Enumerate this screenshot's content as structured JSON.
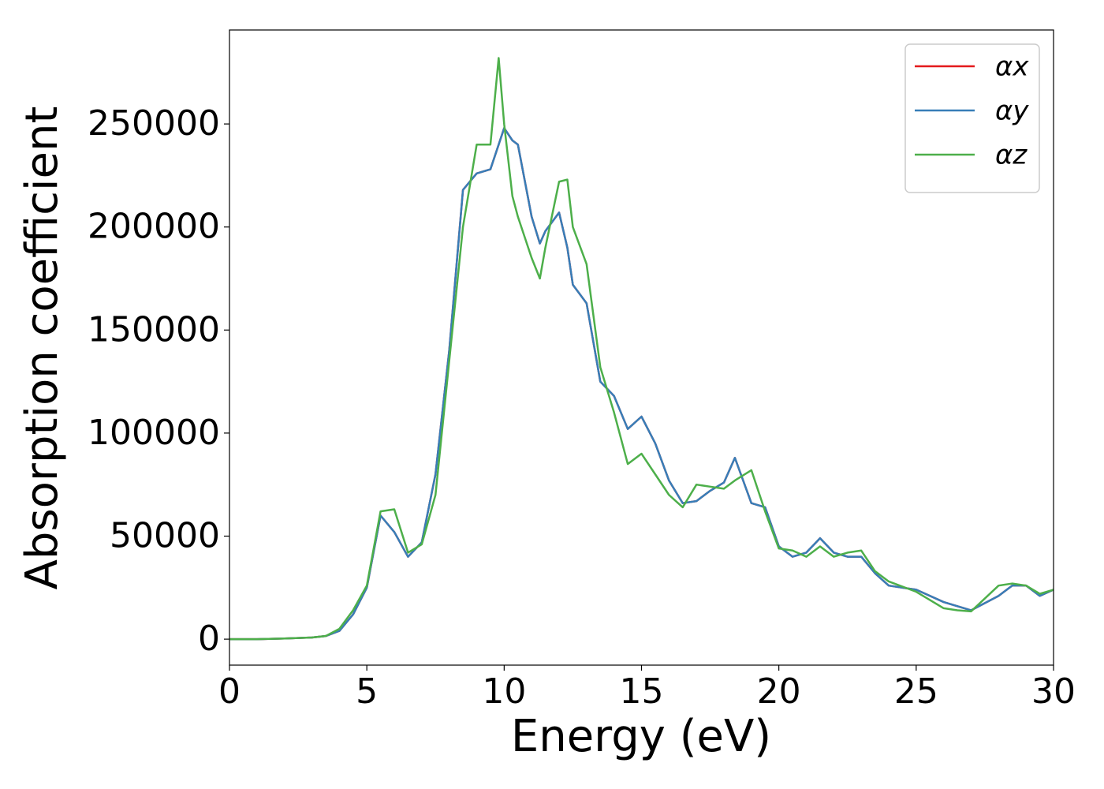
{
  "chart_data": {
    "type": "line",
    "x_label": "Energy (eV)",
    "y_label": "Absorption coefficient",
    "x": [
      0,
      1,
      2,
      3,
      3.5,
      4,
      4.5,
      5,
      5.5,
      6,
      6.5,
      7,
      7.5,
      8,
      8.5,
      9,
      9.5,
      9.8,
      10,
      10.3,
      10.5,
      11,
      11.3,
      11.5,
      12,
      12.3,
      12.5,
      13,
      13.5,
      14,
      14.5,
      15,
      15.5,
      16,
      16.5,
      17,
      17.5,
      18,
      18.4,
      19,
      19.5,
      20,
      20.5,
      21,
      21.5,
      22,
      22.5,
      23,
      23.5,
      24,
      25,
      26,
      26.5,
      27,
      28,
      28.5,
      29,
      29.5,
      30
    ],
    "series": [
      {
        "name": "αx",
        "color": "#e41a1c",
        "values": [
          0,
          0,
          300,
          800,
          1500,
          4000,
          12000,
          25000,
          60000,
          52000,
          40000,
          47000,
          80000,
          140000,
          218000,
          226000,
          228000,
          240000,
          248000,
          242000,
          240000,
          205000,
          192000,
          198000,
          207000,
          190000,
          172000,
          163000,
          125000,
          118000,
          102000,
          108000,
          95000,
          77000,
          66000,
          67000,
          72000,
          76000,
          88000,
          66000,
          64000,
          45000,
          40000,
          42000,
          49000,
          42000,
          40000,
          40000,
          32000,
          26000,
          24000,
          18000,
          16000,
          14000,
          21000,
          26000,
          26000,
          21000,
          24000
        ]
      },
      {
        "name": "αy",
        "color": "#377eb8",
        "values": [
          0,
          0,
          300,
          800,
          1500,
          4000,
          12000,
          25000,
          60000,
          52000,
          40000,
          47000,
          80000,
          140000,
          218000,
          226000,
          228000,
          240000,
          248000,
          242000,
          240000,
          205000,
          192000,
          198000,
          207000,
          190000,
          172000,
          163000,
          125000,
          118000,
          102000,
          108000,
          95000,
          77000,
          66000,
          67000,
          72000,
          76000,
          88000,
          66000,
          64000,
          45000,
          40000,
          42000,
          49000,
          42000,
          40000,
          40000,
          32000,
          26000,
          24000,
          18000,
          16000,
          14000,
          21000,
          26000,
          26000,
          21000,
          24000
        ]
      },
      {
        "name": "αz",
        "color": "#4daf4a",
        "values": [
          0,
          0,
          300,
          800,
          1500,
          5000,
          14000,
          26000,
          62000,
          63000,
          42000,
          46000,
          70000,
          135000,
          200000,
          240000,
          240000,
          282000,
          250000,
          215000,
          205000,
          185000,
          175000,
          190000,
          222000,
          223000,
          200000,
          182000,
          132000,
          110000,
          85000,
          90000,
          80000,
          70000,
          64000,
          75000,
          74000,
          73000,
          77000,
          82000,
          62000,
          44000,
          43000,
          40000,
          45000,
          40000,
          42000,
          43000,
          33000,
          28000,
          23000,
          15000,
          14000,
          13500,
          26000,
          27000,
          26000,
          22000,
          24000
        ]
      }
    ],
    "xlim": [
      0,
      30
    ],
    "xticks": [
      0,
      5,
      10,
      15,
      20,
      25,
      30
    ],
    "ylim": [
      -12600,
      295600
    ],
    "yticks": [
      0,
      50000,
      100000,
      150000,
      200000,
      250000
    ],
    "grid": false,
    "legend": "upper right"
  }
}
